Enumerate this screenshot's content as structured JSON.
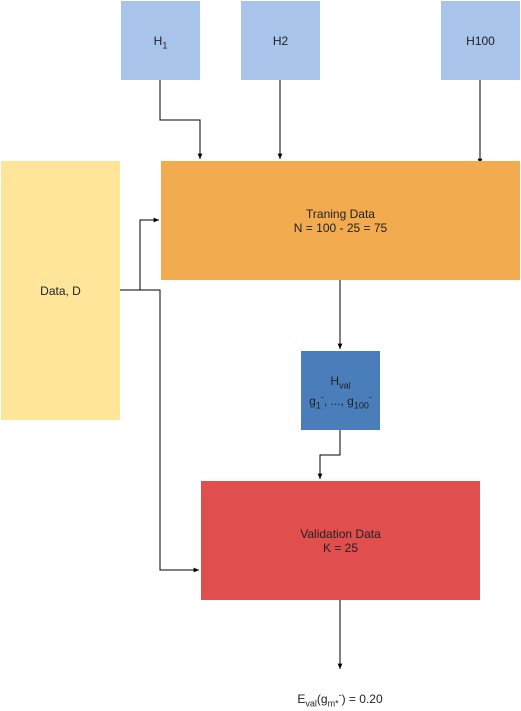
{
  "colors": {
    "hypothesis_fill": "#a9c4eb",
    "data_fill": "#ffe599",
    "training_fill": "#f2ab4f",
    "hval_fill": "#4a7ebb",
    "validation_fill": "#e04e4e",
    "arrow": "#000000"
  },
  "hypotheses": {
    "h1": {
      "base": "H",
      "sub": "1"
    },
    "h2": {
      "base": "H",
      "sub": "2"
    },
    "h100": {
      "base": "H",
      "sub": "100"
    }
  },
  "data_box": {
    "label": "Data, D"
  },
  "training_box": {
    "title": "Traning Data",
    "formula": "N = 100 - 25 = 75"
  },
  "hval_box": {
    "base": "H",
    "sub": "val",
    "g_first_base": "g",
    "g_first_sub": "1",
    "g_first_sup": "-",
    "separator": ", ..., ",
    "g_last_base": "g",
    "g_last_sub": "100",
    "g_last_sup": "-"
  },
  "validation_box": {
    "title": "Validation Data",
    "formula": "K = 25"
  },
  "result": {
    "e_base": "E",
    "e_sub": "val",
    "open": "(",
    "g_base": "g",
    "g_sub": "m*",
    "g_sup": "-",
    "close_value": ") = 0.20"
  }
}
